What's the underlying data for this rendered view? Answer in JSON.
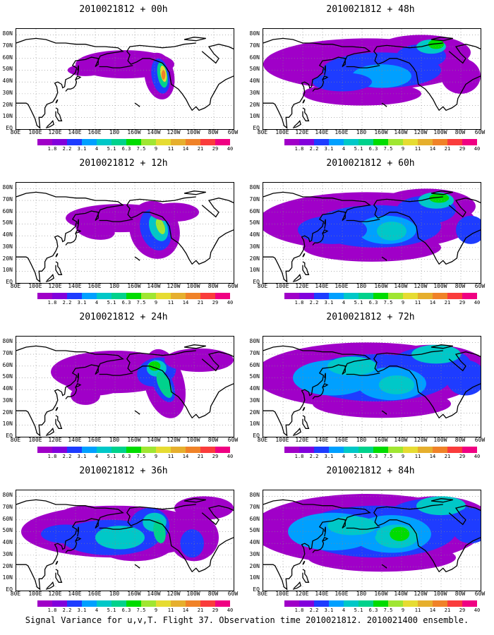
{
  "panels": [
    {
      "title": "2010021812 + 00h",
      "col": 0,
      "row": 0,
      "level": 1
    },
    {
      "title": "2010021812 + 12h",
      "col": 0,
      "row": 1,
      "level": 2
    },
    {
      "title": "2010021812 + 24h",
      "col": 0,
      "row": 2,
      "level": 3
    },
    {
      "title": "2010021812 + 36h",
      "col": 0,
      "row": 3,
      "level": 4
    },
    {
      "title": "2010021812 + 48h",
      "col": 1,
      "row": 0,
      "level": 5
    },
    {
      "title": "2010021812 + 60h",
      "col": 1,
      "row": 1,
      "level": 6
    },
    {
      "title": "2010021812 + 72h",
      "col": 1,
      "row": 2,
      "level": 7
    },
    {
      "title": "2010021812 + 84h",
      "col": 1,
      "row": 3,
      "level": 8
    }
  ],
  "lat_labels": [
    "80N",
    "70N",
    "60N",
    "50N",
    "40N",
    "30N",
    "20N",
    "10N",
    "EQ"
  ],
  "lon_labels": [
    "80E",
    "100E",
    "120E",
    "140E",
    "160E",
    "180",
    "160W",
    "140W",
    "120W",
    "100W",
    "80W",
    "60W"
  ],
  "colorbar": {
    "labels": [
      "1.8",
      "2.2",
      "3.1",
      "4",
      "5.1",
      "6.3",
      "7.5",
      "9",
      "11",
      "14",
      "21",
      "29",
      "40"
    ],
    "colors": [
      "#a000c8",
      "#8200dc",
      "#1e3cff",
      "#00a0ff",
      "#00c8c8",
      "#00d28c",
      "#00dc00",
      "#a0e632",
      "#e6dc32",
      "#e6af2d",
      "#f08228",
      "#fa3c3c",
      "#f00082"
    ]
  },
  "footer": "Signal Variance for u,v,T. Flight 37. Observation time 2010021812. 2010021400 ensemble."
}
